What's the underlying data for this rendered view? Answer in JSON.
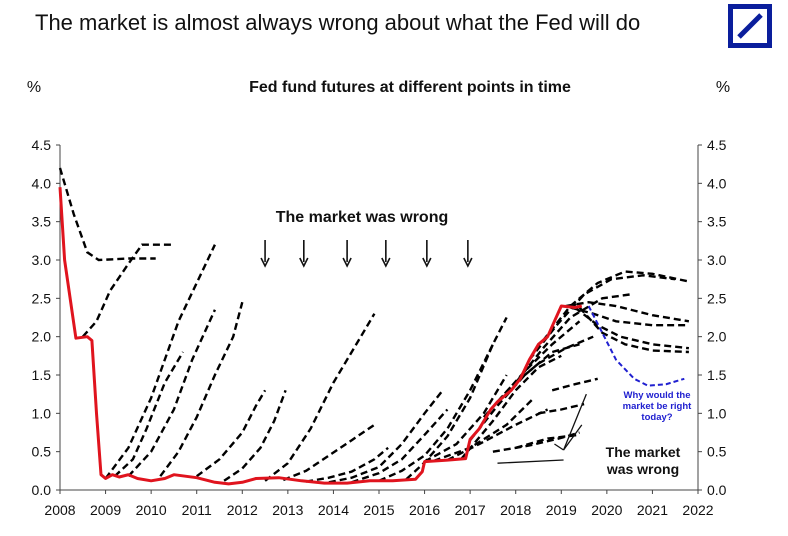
{
  "headline": "The market is almost always wrong about what the Fed will do",
  "logo": {
    "name": "Deutsche Bank logo",
    "color": "#0a1e9c"
  },
  "chart_data": {
    "type": "line",
    "title": "Fed fund futures at different points in time",
    "ylabel_left": "%",
    "ylabel_right": "%",
    "xlim": [
      2008,
      2022
    ],
    "ylim": [
      0,
      4.5
    ],
    "xticks": [
      "2008",
      "2009",
      "2010",
      "2011",
      "2012",
      "2013",
      "2014",
      "2015",
      "2016",
      "2017",
      "2018",
      "2019",
      "2020",
      "2021",
      "2022"
    ],
    "yticks": [
      "0.0",
      "0.5",
      "1.0",
      "1.5",
      "2.0",
      "2.5",
      "3.0",
      "3.5",
      "4.0",
      "4.5"
    ],
    "grid": false,
    "colors": {
      "actual": "#e0141e",
      "futures": "#000000",
      "today": "#2020d0"
    },
    "actual": [
      [
        2008.0,
        3.95
      ],
      [
        2008.1,
        3.0
      ],
      [
        2008.35,
        1.98
      ],
      [
        2008.6,
        2.0
      ],
      [
        2008.7,
        1.95
      ],
      [
        2008.8,
        1.0
      ],
      [
        2008.9,
        0.2
      ],
      [
        2009.0,
        0.15
      ],
      [
        2009.15,
        0.2
      ],
      [
        2009.3,
        0.17
      ],
      [
        2009.5,
        0.2
      ],
      [
        2009.7,
        0.15
      ],
      [
        2010.0,
        0.12
      ],
      [
        2010.3,
        0.15
      ],
      [
        2010.5,
        0.2
      ],
      [
        2011.0,
        0.16
      ],
      [
        2011.4,
        0.1
      ],
      [
        2011.7,
        0.08
      ],
      [
        2012.0,
        0.1
      ],
      [
        2012.3,
        0.15
      ],
      [
        2012.8,
        0.16
      ],
      [
        2013.3,
        0.12
      ],
      [
        2013.8,
        0.09
      ],
      [
        2014.3,
        0.09
      ],
      [
        2014.8,
        0.12
      ],
      [
        2015.3,
        0.12
      ],
      [
        2015.8,
        0.14
      ],
      [
        2015.95,
        0.24
      ],
      [
        2016.0,
        0.37
      ],
      [
        2016.5,
        0.39
      ],
      [
        2016.9,
        0.41
      ],
      [
        2017.0,
        0.66
      ],
      [
        2017.2,
        0.8
      ],
      [
        2017.45,
        1.05
      ],
      [
        2017.6,
        1.15
      ],
      [
        2017.9,
        1.3
      ],
      [
        2018.1,
        1.45
      ],
      [
        2018.3,
        1.7
      ],
      [
        2018.5,
        1.9
      ],
      [
        2018.7,
        2.0
      ],
      [
        2018.85,
        2.2
      ],
      [
        2019.0,
        2.4
      ],
      [
        2019.3,
        2.38
      ],
      [
        2019.45,
        2.4
      ]
    ],
    "futures": [
      [
        [
          2008.0,
          4.2
        ],
        [
          2008.3,
          3.6
        ],
        [
          2008.6,
          3.1
        ],
        [
          2008.85,
          3.0
        ],
        [
          2009.5,
          3.02
        ],
        [
          2010.1,
          3.02
        ]
      ],
      [
        [
          2008.5,
          2.0
        ],
        [
          2008.8,
          2.2
        ],
        [
          2009.1,
          2.6
        ],
        [
          2009.5,
          2.95
        ],
        [
          2009.8,
          3.2
        ],
        [
          2010.5,
          3.2
        ]
      ],
      [
        [
          2009.0,
          0.15
        ],
        [
          2009.5,
          0.55
        ],
        [
          2010.0,
          1.2
        ],
        [
          2010.6,
          2.2
        ],
        [
          2011.4,
          3.2
        ]
      ],
      [
        [
          2009.2,
          0.18
        ],
        [
          2009.6,
          0.4
        ],
        [
          2009.9,
          0.8
        ],
        [
          2010.3,
          1.4
        ],
        [
          2010.7,
          1.8
        ]
      ],
      [
        [
          2009.5,
          0.18
        ],
        [
          2010.0,
          0.5
        ],
        [
          2010.5,
          1.05
        ],
        [
          2010.9,
          1.7
        ],
        [
          2011.4,
          2.35
        ]
      ],
      [
        [
          2010.2,
          0.18
        ],
        [
          2010.6,
          0.5
        ],
        [
          2011.0,
          0.95
        ],
        [
          2011.4,
          1.5
        ],
        [
          2011.8,
          2.0
        ],
        [
          2012.0,
          2.45
        ]
      ],
      [
        [
          2011.0,
          0.18
        ],
        [
          2011.5,
          0.4
        ],
        [
          2012.0,
          0.75
        ],
        [
          2012.3,
          1.1
        ],
        [
          2012.5,
          1.3
        ]
      ],
      [
        [
          2011.6,
          0.12
        ],
        [
          2012.0,
          0.28
        ],
        [
          2012.4,
          0.55
        ],
        [
          2012.7,
          0.9
        ],
        [
          2012.95,
          1.3
        ]
      ],
      [
        [
          2012.5,
          0.12
        ],
        [
          2013.0,
          0.35
        ],
        [
          2013.5,
          0.8
        ],
        [
          2014.0,
          1.4
        ],
        [
          2014.6,
          2.0
        ],
        [
          2014.9,
          2.3
        ]
      ],
      [
        [
          2012.9,
          0.13
        ],
        [
          2013.4,
          0.25
        ],
        [
          2013.9,
          0.45
        ],
        [
          2014.4,
          0.65
        ],
        [
          2014.9,
          0.85
        ]
      ],
      [
        [
          2013.4,
          0.11
        ],
        [
          2013.9,
          0.16
        ],
        [
          2014.4,
          0.24
        ],
        [
          2014.9,
          0.4
        ],
        [
          2015.2,
          0.55
        ]
      ],
      [
        [
          2013.9,
          0.1
        ],
        [
          2014.4,
          0.16
        ],
        [
          2015.0,
          0.3
        ],
        [
          2015.5,
          0.6
        ],
        [
          2016.0,
          1.0
        ],
        [
          2016.4,
          1.3
        ]
      ],
      [
        [
          2014.4,
          0.1
        ],
        [
          2015.0,
          0.22
        ],
        [
          2015.5,
          0.4
        ],
        [
          2016.0,
          0.72
        ],
        [
          2016.5,
          1.05
        ]
      ],
      [
        [
          2015.0,
          0.12
        ],
        [
          2015.5,
          0.25
        ],
        [
          2016.0,
          0.45
        ],
        [
          2016.5,
          0.8
        ],
        [
          2017.0,
          1.3
        ],
        [
          2017.5,
          1.9
        ]
      ],
      [
        [
          2015.6,
          0.14
        ],
        [
          2016.0,
          0.36
        ],
        [
          2016.5,
          0.7
        ],
        [
          2017.0,
          1.2
        ],
        [
          2017.5,
          1.9
        ],
        [
          2017.8,
          2.25
        ]
      ],
      [
        [
          2016.0,
          0.37
        ],
        [
          2016.7,
          0.6
        ],
        [
          2017.3,
          1.0
        ],
        [
          2017.8,
          1.5
        ]
      ],
      [
        [
          2016.2,
          0.38
        ],
        [
          2017.0,
          0.55
        ],
        [
          2017.8,
          0.85
        ],
        [
          2018.4,
          1.2
        ]
      ],
      [
        [
          2016.5,
          0.39
        ],
        [
          2017.2,
          0.6
        ],
        [
          2018.0,
          0.85
        ],
        [
          2018.7,
          1.05
        ]
      ],
      [
        [
          2016.8,
          0.4
        ],
        [
          2017.5,
          0.9
        ],
        [
          2018.0,
          1.3
        ],
        [
          2018.5,
          1.6
        ],
        [
          2019.0,
          1.75
        ]
      ],
      [
        [
          2017.0,
          0.65
        ],
        [
          2017.6,
          1.1
        ],
        [
          2018.2,
          1.5
        ],
        [
          2018.8,
          1.8
        ],
        [
          2019.4,
          1.9
        ]
      ],
      [
        [
          2017.3,
          0.95
        ],
        [
          2017.9,
          1.35
        ],
        [
          2018.5,
          1.65
        ],
        [
          2019.1,
          1.85
        ],
        [
          2019.7,
          2.0
        ]
      ],
      [
        [
          2017.6,
          1.15
        ],
        [
          2018.2,
          1.55
        ],
        [
          2018.8,
          1.9
        ],
        [
          2019.4,
          2.2
        ]
      ],
      [
        [
          2018.0,
          1.4
        ],
        [
          2018.6,
          1.85
        ],
        [
          2019.2,
          2.25
        ],
        [
          2019.9,
          2.5
        ],
        [
          2020.5,
          2.55
        ]
      ],
      [
        [
          2018.3,
          1.7
        ],
        [
          2018.9,
          2.15
        ],
        [
          2019.5,
          2.55
        ],
        [
          2020.1,
          2.75
        ],
        [
          2020.8,
          2.8
        ],
        [
          2021.5,
          2.75
        ]
      ],
      [
        [
          2018.6,
          1.95
        ],
        [
          2019.2,
          2.4
        ],
        [
          2019.8,
          2.7
        ],
        [
          2020.4,
          2.85
        ],
        [
          2021.0,
          2.82
        ],
        [
          2021.8,
          2.72
        ]
      ],
      [
        [
          2019.1,
          2.4
        ],
        [
          2019.6,
          2.45
        ],
        [
          2020.2,
          2.4
        ],
        [
          2021.0,
          2.28
        ],
        [
          2021.8,
          2.2
        ]
      ],
      [
        [
          2019.2,
          2.38
        ],
        [
          2019.7,
          2.3
        ],
        [
          2020.2,
          2.2
        ],
        [
          2021.0,
          2.15
        ],
        [
          2021.8,
          2.15
        ]
      ],
      [
        [
          2019.3,
          2.38
        ],
        [
          2019.8,
          2.15
        ],
        [
          2020.3,
          2.0
        ],
        [
          2021.0,
          1.9
        ],
        [
          2021.8,
          1.85
        ]
      ],
      [
        [
          2019.4,
          2.38
        ],
        [
          2019.9,
          2.05
        ],
        [
          2020.4,
          1.9
        ],
        [
          2021.0,
          1.82
        ],
        [
          2021.8,
          1.8
        ]
      ],
      [
        [
          2017.5,
          0.5
        ],
        [
          2018.3,
          0.58
        ],
        [
          2019.0,
          0.68
        ],
        [
          2019.4,
          0.75
        ]
      ],
      [
        [
          2018.0,
          0.55
        ],
        [
          2018.7,
          0.67
        ],
        [
          2019.4,
          0.72
        ]
      ],
      [
        [
          2018.5,
          1.0
        ],
        [
          2019.0,
          1.05
        ],
        [
          2019.5,
          1.12
        ]
      ],
      [
        [
          2018.8,
          1.3
        ],
        [
          2019.3,
          1.38
        ],
        [
          2019.8,
          1.45
        ]
      ]
    ],
    "today_outlook": [
      [
        2019.6,
        2.4
      ],
      [
        2019.9,
        2.05
      ],
      [
        2020.2,
        1.7
      ],
      [
        2020.6,
        1.45
      ],
      [
        2020.9,
        1.36
      ],
      [
        2021.3,
        1.38
      ],
      [
        2021.7,
        1.45
      ]
    ],
    "annotations": {
      "wrong_top": "The market was wrong",
      "wrong_right": "The market\nwas wrong",
      "question": "Why would the\nmarket be right\ntoday?"
    },
    "arrow_years": [
      2012.5,
      2013.35,
      2014.3,
      2015.15,
      2016.05,
      2016.95
    ]
  }
}
